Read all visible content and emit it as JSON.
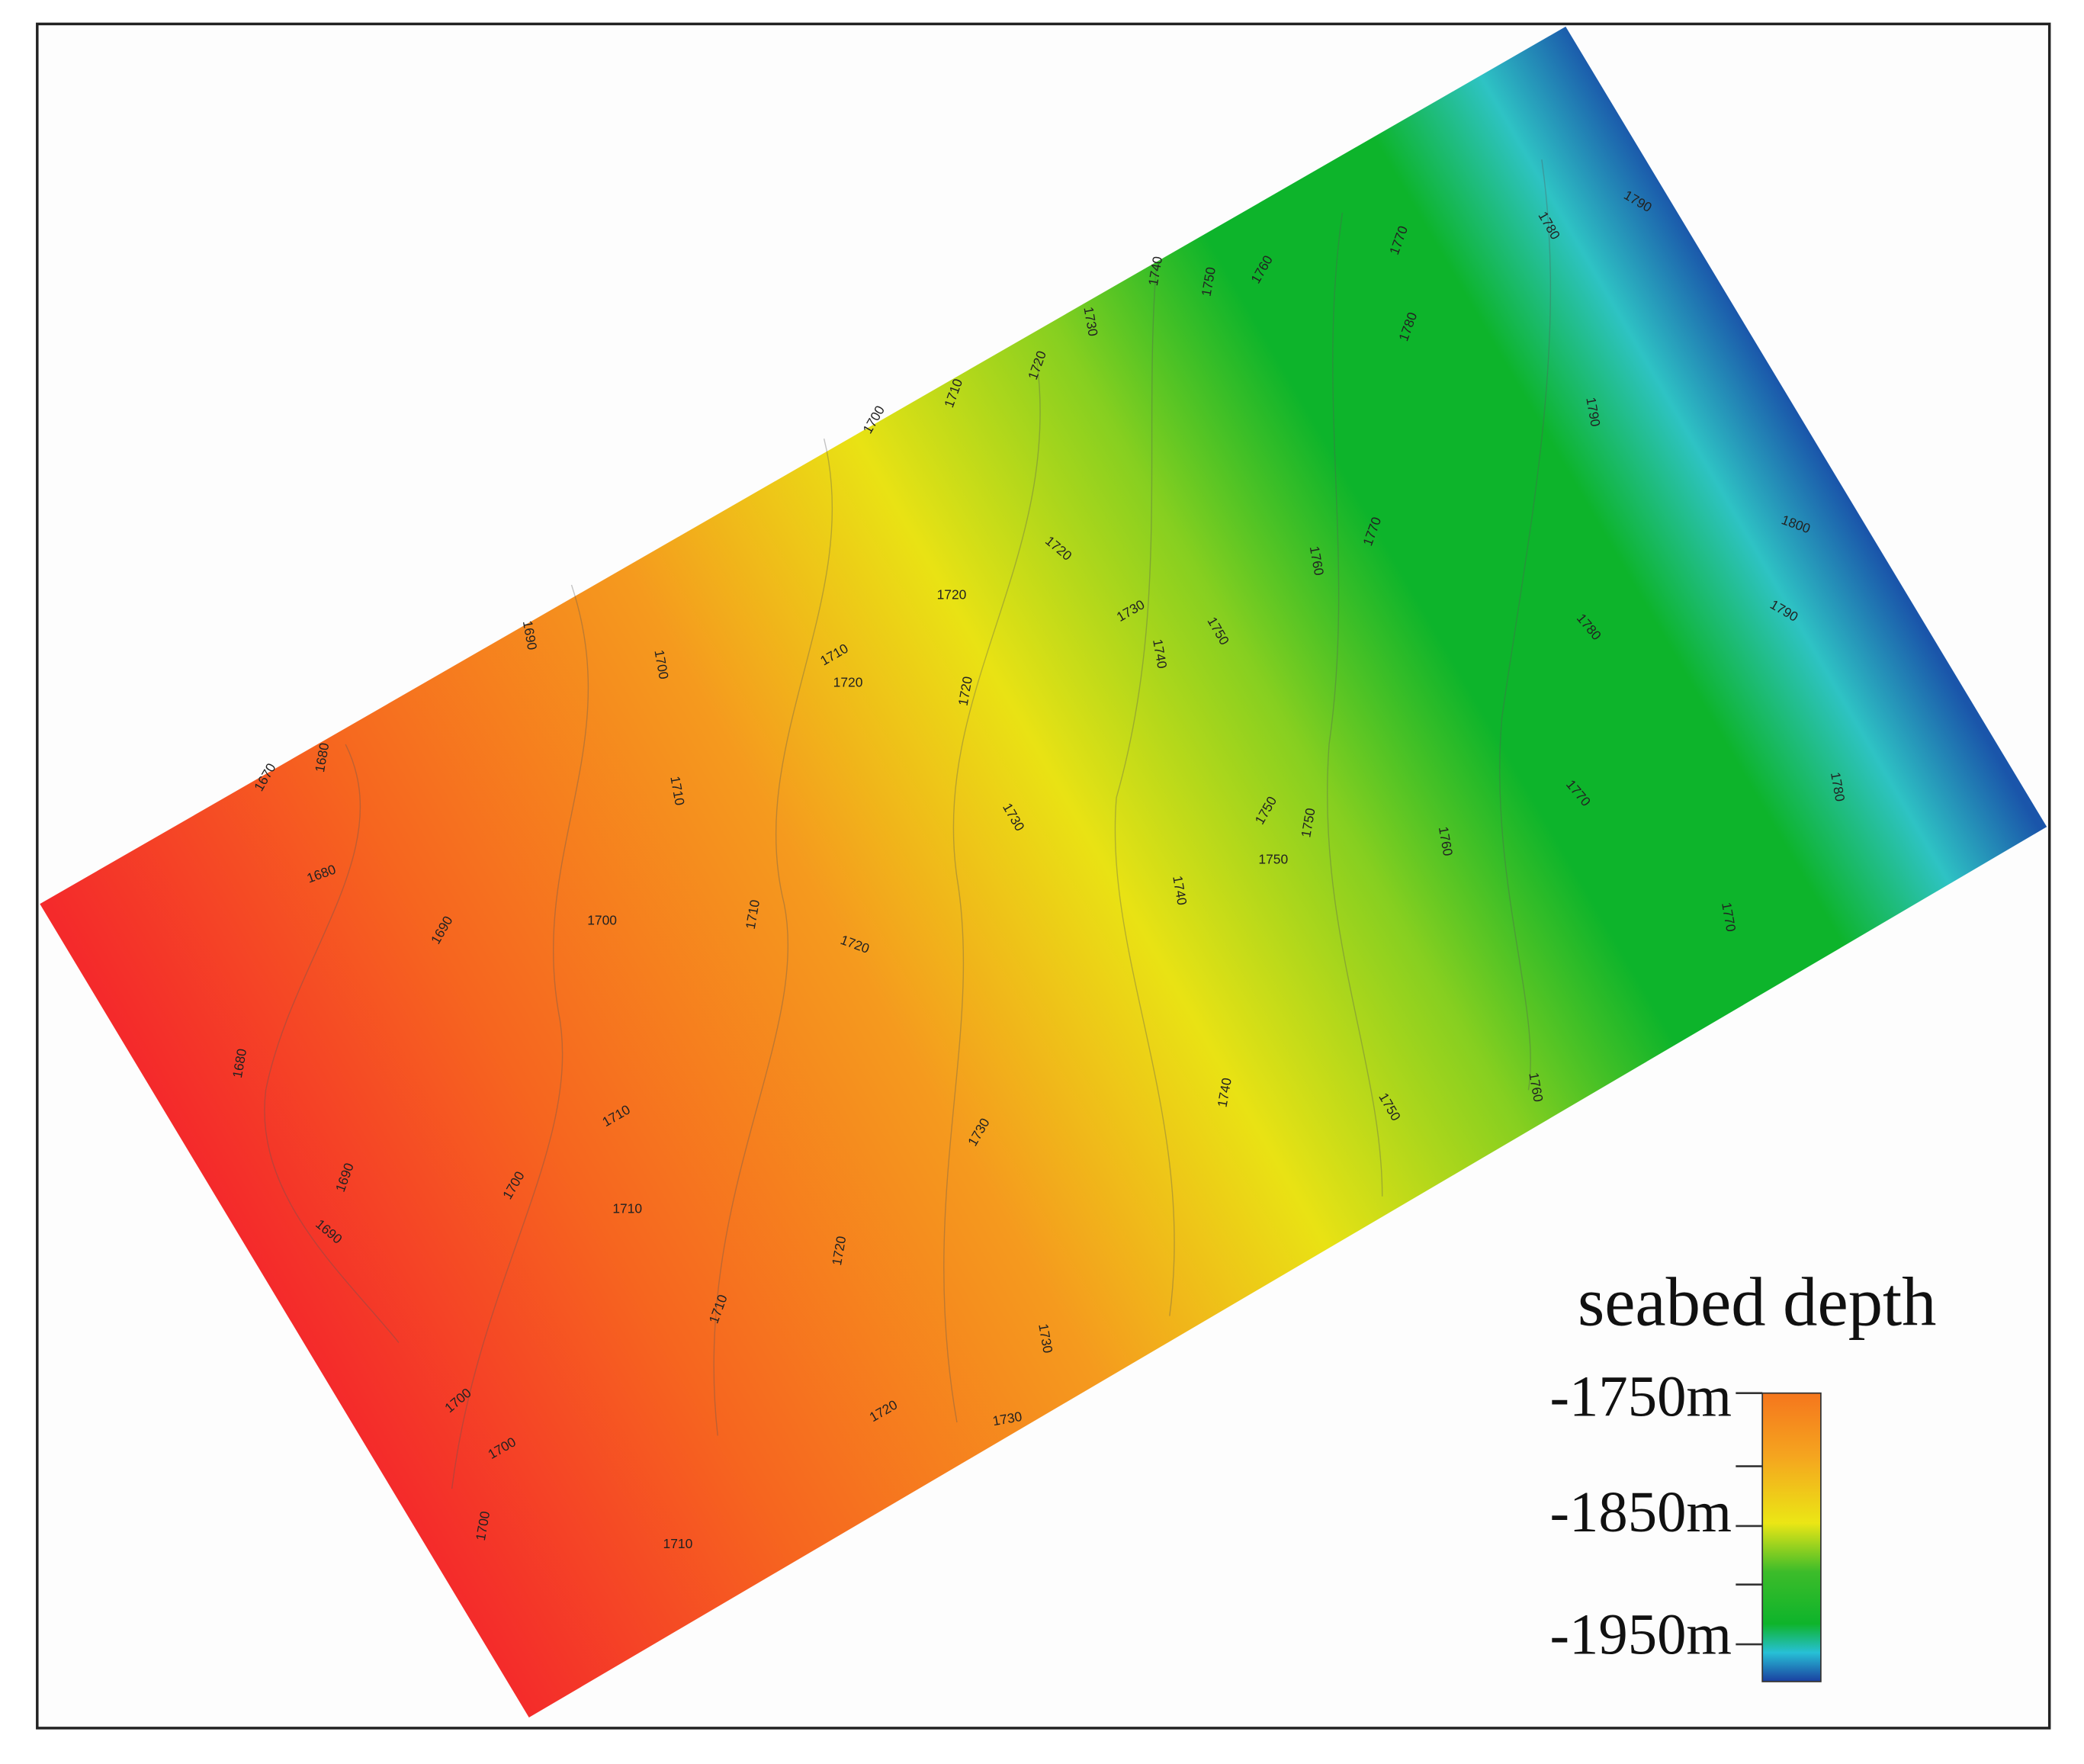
{
  "map": {
    "contour_labels": [
      "1670",
      "1680",
      "1680",
      "1690",
      "1700",
      "1700",
      "1710",
      "1720",
      "1730",
      "1740",
      "1750",
      "1760",
      "1770",
      "1780",
      "1790",
      "1780",
      "1790",
      "1800",
      "1790",
      "1780",
      "1770",
      "1760",
      "1750",
      "1740",
      "1730",
      "1720",
      "1720",
      "1710",
      "1720",
      "1720",
      "1710",
      "1690",
      "1680",
      "1700",
      "1710",
      "1730",
      "1720",
      "1750",
      "1750",
      "1750",
      "1740",
      "1760",
      "1770",
      "1780",
      "1770",
      "1760",
      "1750",
      "1740",
      "1730",
      "1710",
      "1700",
      "1690",
      "1690",
      "1710",
      "1720",
      "1710",
      "1730",
      "1700",
      "1720",
      "1730",
      "1700",
      "1700",
      "1710"
    ],
    "legend": {
      "title": "seabed depth",
      "labels": [
        "-1750m",
        "-1850m",
        "-1950m"
      ]
    }
  }
}
